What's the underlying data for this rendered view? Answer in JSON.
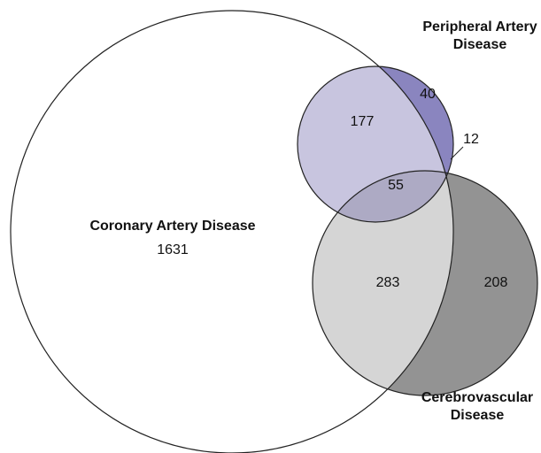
{
  "chart_data": {
    "type": "venn",
    "sets": [
      {
        "name": "Coronary Artery Disease"
      },
      {
        "name": "Peripheral Artery Disease"
      },
      {
        "name": "Cerebrovascular Disease"
      }
    ],
    "regions": [
      {
        "sets": [
          0
        ],
        "value": 1631,
        "color": "#ffffff"
      },
      {
        "sets": [
          0,
          1
        ],
        "value": 177,
        "color": "#c8c5df"
      },
      {
        "sets": [
          1
        ],
        "value": 40,
        "color": "#8a85bf"
      },
      {
        "sets": [
          1,
          2
        ],
        "value": 12,
        "color": "#6c6a88"
      },
      {
        "sets": [
          0,
          1,
          2
        ],
        "value": 55,
        "color": "#adaac4"
      },
      {
        "sets": [
          0,
          2
        ],
        "value": 283,
        "color": "#d5d5d5"
      },
      {
        "sets": [
          2
        ],
        "value": 208,
        "color": "#939393"
      }
    ]
  }
}
